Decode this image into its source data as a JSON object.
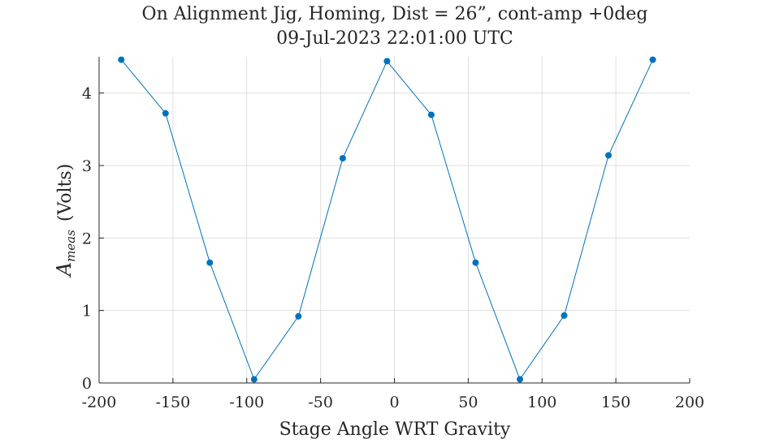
{
  "chart_data": {
    "type": "line",
    "title": "On Alignment Jig, Homing, Dist = 26”, cont-amp +0deg",
    "subtitle": "09-Jul-2023 22:01:00 UTC",
    "xlabel": "Stage Angle WRT Gravity",
    "ylabel_main": "A",
    "ylabel_sub": "meas",
    "ylabel_unit": "(Volts)",
    "xlim": [
      -200,
      200
    ],
    "ylim": [
      0,
      4.5
    ],
    "xticks": [
      -200,
      -150,
      -100,
      -50,
      0,
      50,
      100,
      150,
      200
    ],
    "yticks": [
      0,
      1,
      2,
      3,
      4
    ],
    "grid": true,
    "series": [
      {
        "color": "#0072bd",
        "x": [
          -185,
          -155,
          -125,
          -95,
          -65,
          -35,
          -5,
          25,
          55,
          85,
          115,
          145,
          175
        ],
        "y": [
          4.46,
          3.72,
          1.66,
          0.05,
          0.92,
          3.1,
          4.44,
          3.7,
          1.66,
          0.05,
          0.93,
          3.14,
          4.46
        ]
      }
    ]
  }
}
